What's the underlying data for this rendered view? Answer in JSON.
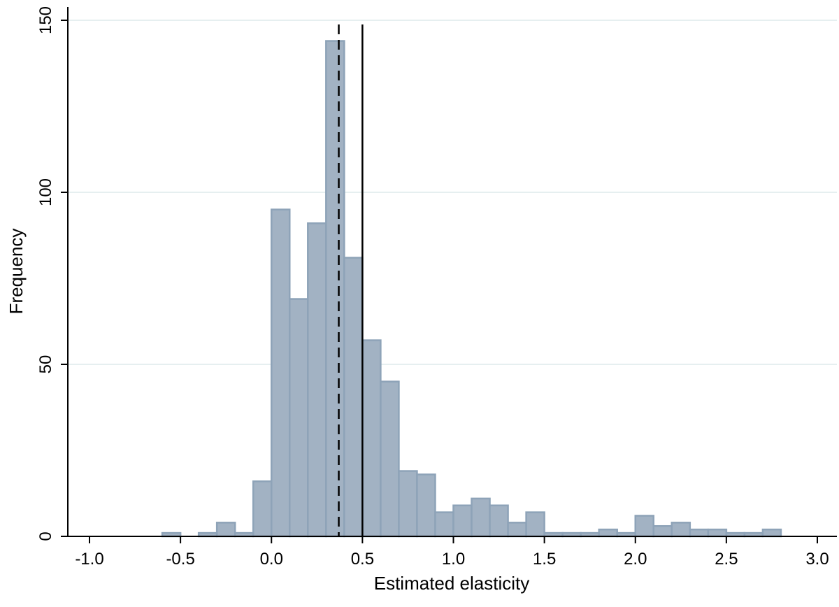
{
  "chart_data": {
    "type": "bar",
    "title": "",
    "xlabel": "Estimated elasticity",
    "ylabel": "Frequency",
    "xlim": [
      -1.0,
      3.05
    ],
    "ylim": [
      0,
      150
    ],
    "xticks": [
      -1.0,
      -0.5,
      0.0,
      0.5,
      1.0,
      1.5,
      2.0,
      2.5,
      3.0
    ],
    "xtick_labels": [
      "-1.0",
      "-0.5",
      "0.0",
      "0.5",
      "1.0",
      "1.5",
      "2.0",
      "2.5",
      "3.0"
    ],
    "yticks": [
      0,
      50,
      100,
      150
    ],
    "ytick_labels": [
      "0",
      "50",
      "100",
      "150"
    ],
    "grid": "horizontal",
    "bin_width": 0.1,
    "bins": [
      {
        "start": -0.6,
        "count": 1
      },
      {
        "start": -0.5,
        "count": 0
      },
      {
        "start": -0.4,
        "count": 1
      },
      {
        "start": -0.3,
        "count": 4
      },
      {
        "start": -0.2,
        "count": 1
      },
      {
        "start": -0.1,
        "count": 16
      },
      {
        "start": 0.0,
        "count": 95
      },
      {
        "start": 0.1,
        "count": 69
      },
      {
        "start": 0.2,
        "count": 91
      },
      {
        "start": 0.3,
        "count": 144
      },
      {
        "start": 0.4,
        "count": 81
      },
      {
        "start": 0.5,
        "count": 57
      },
      {
        "start": 0.6,
        "count": 45
      },
      {
        "start": 0.7,
        "count": 19
      },
      {
        "start": 0.8,
        "count": 18
      },
      {
        "start": 0.9,
        "count": 7
      },
      {
        "start": 1.0,
        "count": 9
      },
      {
        "start": 1.1,
        "count": 11
      },
      {
        "start": 1.2,
        "count": 9
      },
      {
        "start": 1.3,
        "count": 4
      },
      {
        "start": 1.4,
        "count": 7
      },
      {
        "start": 1.5,
        "count": 1
      },
      {
        "start": 1.6,
        "count": 1
      },
      {
        "start": 1.7,
        "count": 1
      },
      {
        "start": 1.8,
        "count": 2
      },
      {
        "start": 1.9,
        "count": 1
      },
      {
        "start": 2.0,
        "count": 6
      },
      {
        "start": 2.1,
        "count": 3
      },
      {
        "start": 2.2,
        "count": 4
      },
      {
        "start": 2.3,
        "count": 2
      },
      {
        "start": 2.4,
        "count": 2
      },
      {
        "start": 2.5,
        "count": 1
      },
      {
        "start": 2.6,
        "count": 1
      },
      {
        "start": 2.7,
        "count": 2
      }
    ],
    "reference_lines": [
      {
        "x": 0.37,
        "style": "dashed",
        "color": "#000000"
      },
      {
        "x": 0.5,
        "style": "solid",
        "color": "#000000"
      }
    ],
    "colors": {
      "bar_fill": "#a2b2c3",
      "bar_stroke": "#8ea3b8",
      "grid": "#e6eff0",
      "axis": "#000000"
    }
  }
}
